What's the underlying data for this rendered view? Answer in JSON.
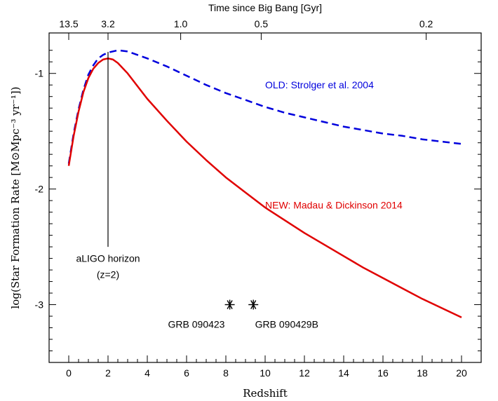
{
  "chart_data": {
    "type": "line",
    "top_axis": {
      "label": "Time since Big Bang [Gyr]",
      "ticks": [
        {
          "label": "13.5",
          "z": 0
        },
        {
          "label": "3.2",
          "z": 2
        },
        {
          "label": "1.0",
          "z": 5.7
        },
        {
          "label": "0.5",
          "z": 9.8
        },
        {
          "label": "0.2",
          "z": 18.2
        }
      ]
    },
    "xlabel": "Redshift",
    "ylabel": "log(Star Formation Rate [M⊙Mpc⁻³ yr⁻¹])",
    "xlim": [
      -1,
      21
    ],
    "ylim": [
      -3.5,
      -0.65
    ],
    "x_ticks": [
      0,
      2,
      4,
      6,
      8,
      10,
      12,
      14,
      16,
      18,
      20
    ],
    "y_ticks": [
      -1,
      -2,
      -3
    ],
    "y_tick_labels": [
      "-1",
      "-2",
      "-3"
    ],
    "series": [
      {
        "name": "OLD: Strolger et al. 2004",
        "color": "#0000dd",
        "dash": true,
        "x": [
          0,
          0.25,
          0.5,
          0.75,
          1.0,
          1.25,
          1.5,
          1.75,
          2.0,
          2.5,
          3.0,
          3.5,
          4.0,
          5.0,
          6.0,
          7.0,
          8.0,
          9.0,
          10.0,
          11.0,
          12.0,
          13.0,
          14.0,
          15.0,
          16.0,
          17.0,
          18.0,
          19.0,
          20.0
        ],
        "y": [
          -1.78,
          -1.52,
          -1.31,
          -1.14,
          -1.01,
          -0.93,
          -0.87,
          -0.84,
          -0.82,
          -0.8,
          -0.81,
          -0.84,
          -0.87,
          -0.94,
          -1.02,
          -1.1,
          -1.17,
          -1.23,
          -1.29,
          -1.34,
          -1.38,
          -1.42,
          -1.46,
          -1.49,
          -1.52,
          -1.54,
          -1.57,
          -1.59,
          -1.61
        ]
      },
      {
        "name": "NEW: Madau & Dickinson 2014",
        "color": "#e00000",
        "dash": false,
        "x": [
          0,
          0.25,
          0.5,
          0.75,
          1.0,
          1.25,
          1.5,
          1.75,
          2.0,
          2.25,
          2.5,
          3.0,
          3.5,
          4.0,
          5.0,
          6.0,
          7.0,
          8.0,
          9.0,
          10.0,
          11.0,
          12.0,
          13.0,
          14.0,
          15.0,
          16.0,
          17.0,
          18.0,
          19.0,
          20.0
        ],
        "y": [
          -1.8,
          -1.54,
          -1.33,
          -1.16,
          -1.04,
          -0.96,
          -0.91,
          -0.88,
          -0.87,
          -0.88,
          -0.91,
          -1.0,
          -1.11,
          -1.22,
          -1.41,
          -1.59,
          -1.75,
          -1.9,
          -2.03,
          -2.16,
          -2.27,
          -2.38,
          -2.48,
          -2.58,
          -2.68,
          -2.77,
          -2.86,
          -2.95,
          -3.03,
          -3.11
        ]
      }
    ],
    "series_labels": [
      {
        "text": "OLD: Strolger et al. 2004",
        "color": "#0000dd",
        "x": 10.0,
        "y": -1.13
      },
      {
        "text": "NEW: Madau & Dickinson 2014",
        "color": "#e00000",
        "x": 10.0,
        "y": -2.17
      }
    ],
    "vertical_line": {
      "x": 2,
      "y_from": -2.5,
      "y_to": -0.65
    },
    "annotations": [
      {
        "text": "aLIGO horizon",
        "x": 2,
        "y": -2.63
      },
      {
        "text": "(z=2)",
        "x": 2,
        "y": -2.77
      }
    ],
    "points": [
      {
        "label": "GRB 090423",
        "x": 8.2,
        "y": -3.0,
        "label_x": 6.5,
        "label_y": -3.2
      },
      {
        "label": "GRB 090429B",
        "x": 9.4,
        "y": -3.0,
        "label_x": 11.1,
        "label_y": -3.2
      }
    ]
  }
}
